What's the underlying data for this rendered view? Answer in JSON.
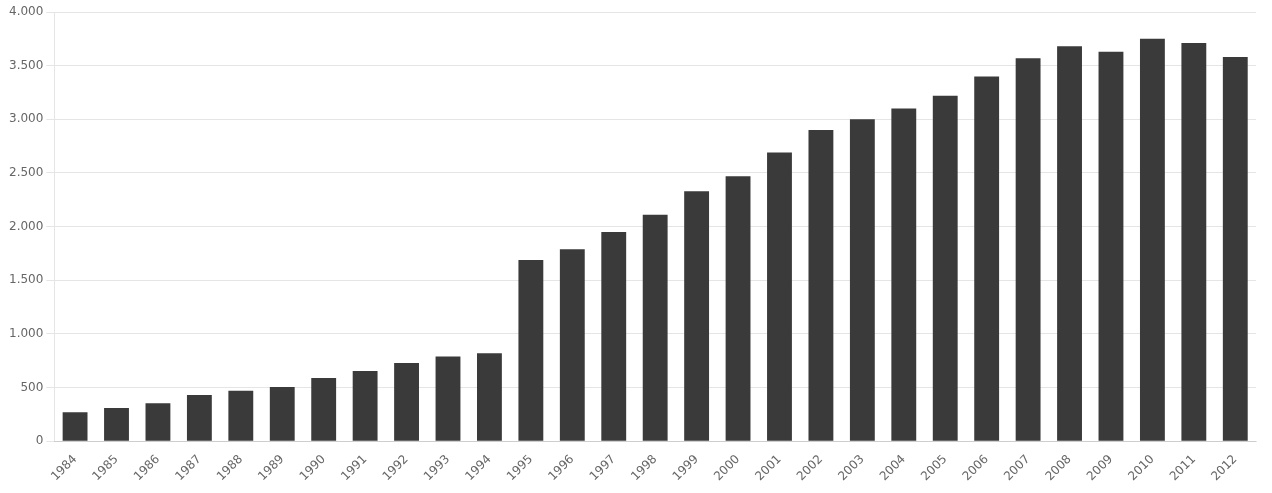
{
  "chart_data": {
    "type": "bar",
    "categories": [
      "1984",
      "1985",
      "1986",
      "1987",
      "1988",
      "1989",
      "1990",
      "1991",
      "1992",
      "1993",
      "1994",
      "1995",
      "1996",
      "1997",
      "1998",
      "1999",
      "2000",
      "2001",
      "2002",
      "2003",
      "2004",
      "2005",
      "2006",
      "2007",
      "2008",
      "2009",
      "2010",
      "2011",
      "2012"
    ],
    "values": [
      270,
      310,
      355,
      430,
      470,
      505,
      590,
      655,
      730,
      790,
      820,
      1690,
      1790,
      1950,
      2110,
      2330,
      2470,
      2690,
      2900,
      3000,
      3100,
      3220,
      3400,
      3570,
      3680,
      3630,
      3750,
      3710,
      3580
    ],
    "color": "#3a3a3a",
    "ylim": [
      0,
      4000
    ],
    "yticks": [
      0,
      500,
      {
        "value": 1000,
        "label": "1.000"
      },
      {
        "value": 1500,
        "label": "1.500"
      },
      {
        "value": 2000,
        "label": "2.000"
      },
      {
        "value": 2500,
        "label": "2.500"
      },
      {
        "value": 3000,
        "label": "3.000"
      },
      {
        "value": 3500,
        "label": "3.500"
      },
      {
        "value": 4000,
        "label": "4.000"
      }
    ],
    "grid": true
  }
}
